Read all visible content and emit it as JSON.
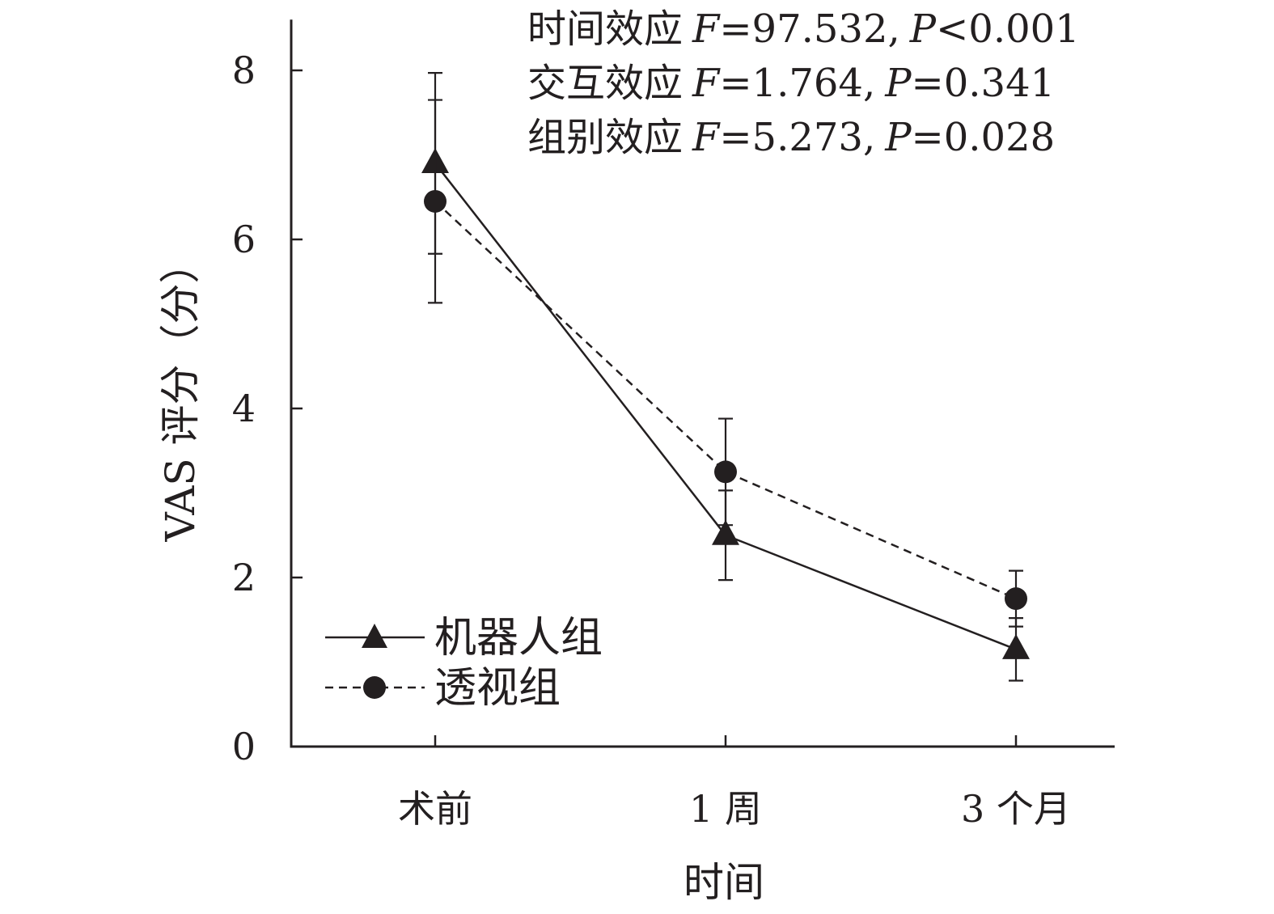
{
  "chart_data": {
    "type": "line",
    "xlabel": "时间",
    "ylabel": "VAS 评分（分）",
    "categories": [
      "术前",
      "1 周",
      "3 个月"
    ],
    "y_ticks": [
      "0",
      "2",
      "4",
      "6",
      "8"
    ],
    "ylim": [
      0,
      8.6
    ],
    "grid": false,
    "legend_position": "bottom-left",
    "series": [
      {
        "name": "机器人组",
        "marker": "triangle",
        "line_style": "solid",
        "values": [
          6.9,
          2.5,
          1.15
        ],
        "error": [
          1.07,
          0.53,
          0.37
        ]
      },
      {
        "name": "透视组",
        "marker": "circle",
        "line_style": "dashed",
        "values": [
          6.45,
          3.25,
          1.75
        ],
        "error": [
          1.2,
          0.63,
          0.33
        ]
      }
    ],
    "annotations": [
      {
        "label": "时间效应",
        "f_label": "F",
        "f_value": "=97.532,",
        "p_label": "P",
        "p_value": "<0.001"
      },
      {
        "label": "交互效应",
        "f_label": "F",
        "f_value": "=1.764,",
        "p_label": "P",
        "p_value": "=0.341"
      },
      {
        "label": "组别效应",
        "f_label": "F",
        "f_value": "=5.273,",
        "p_label": "P",
        "p_value": "=0.028"
      }
    ],
    "colors": {
      "ink": "#231f20"
    }
  }
}
